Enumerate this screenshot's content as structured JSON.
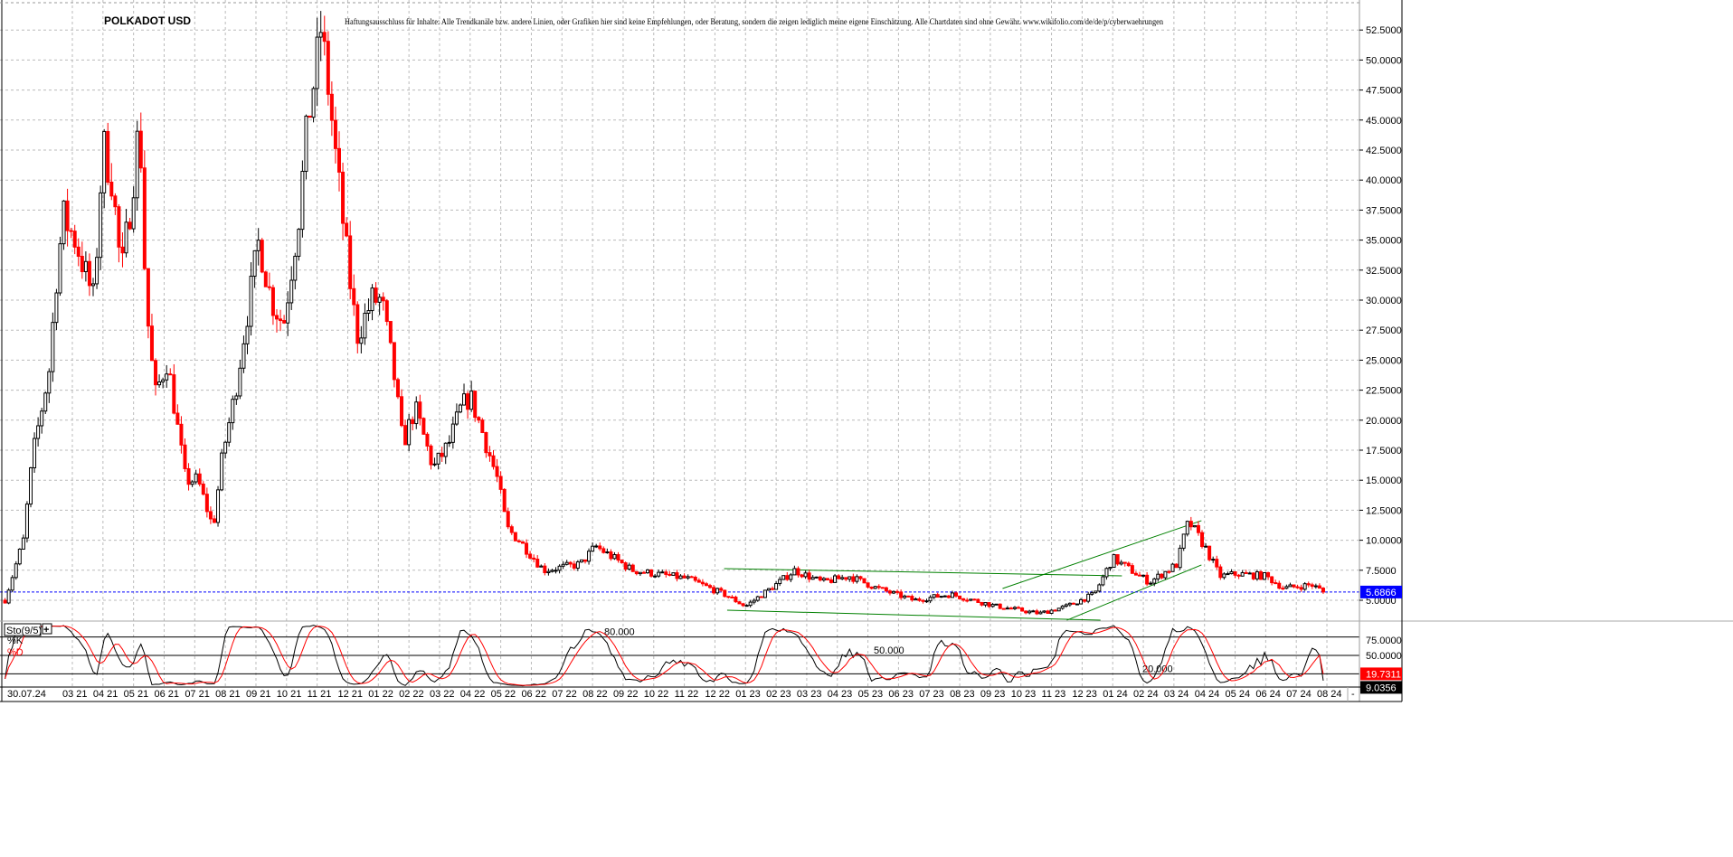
{
  "chart_data": {
    "type": "candlestick",
    "title": "POLKADOT USD",
    "disclaimer": "Haftungsausschluss für Inhalte: Alle Trendkanäle bzw. andere Linien, oder Grafiken hier sind keine Empfehlungen, oder Beratung, sondern die zeigen lediglich meine eigene Einschätzung. Alle Chartdaten sind ohne Gewähr.  www.wikifolio.com/de/de/p/cyberwaehrungen",
    "x_unit": "months since 03/2021",
    "xlim": [
      -2.35,
      42.2
    ],
    "ylim": [
      3.0,
      54.5
    ],
    "y_ticks": [
      5,
      7.5,
      10,
      12.5,
      15,
      17.5,
      20,
      22.5,
      25,
      27.5,
      30,
      32.5,
      35,
      37.5,
      40,
      42.5,
      45,
      47.5,
      50,
      52.5
    ],
    "y_tick_labels": [
      "5.0000",
      "7.5000",
      "10.0000",
      "12.5000",
      "15.0000",
      "17.5000",
      "20.0000",
      "22.5000",
      "25.0000",
      "27.5000",
      "30.0000",
      "32.5000",
      "35.0000",
      "37.5000",
      "40.0000",
      "42.5000",
      "45.0000",
      "47.5000",
      "50.0000",
      "52.5000"
    ],
    "x_first_label": "30.07.24",
    "x_labels": [
      "03 21",
      "04 21",
      "05 21",
      "06 21",
      "07 21",
      "08 21",
      "09 21",
      "10 21",
      "11 21",
      "12 21",
      "01 22",
      "02 22",
      "03 22",
      "04 22",
      "05 22",
      "06 22",
      "07 22",
      "08 22",
      "09 22",
      "10 22",
      "11 22",
      "12 22",
      "01 23",
      "02 23",
      "03 23",
      "04 23",
      "05 23",
      "06 23",
      "07 23",
      "08 23",
      "09 23",
      "10 23",
      "11 23",
      "12 23",
      "01 24",
      "02 24",
      "03 24",
      "04 24",
      "05 24",
      "06 24",
      "07 24",
      "08 24"
    ],
    "price_path": [
      [
        -2.2,
        5
      ],
      [
        -1.6,
        10
      ],
      [
        -1.3,
        17
      ],
      [
        -0.7,
        25
      ],
      [
        -0.6,
        30
      ],
      [
        -0.3,
        37
      ],
      [
        0.1,
        35
      ],
      [
        0.7,
        30
      ],
      [
        1.0,
        43
      ],
      [
        1.3,
        40
      ],
      [
        1.6,
        32
      ],
      [
        1.9,
        38
      ],
      [
        2.2,
        45
      ],
      [
        2.4,
        30
      ],
      [
        2.7,
        22
      ],
      [
        3.1,
        25
      ],
      [
        3.4,
        20
      ],
      [
        3.7,
        15
      ],
      [
        4.1,
        15
      ],
      [
        4.6,
        11
      ],
      [
        4.9,
        17
      ],
      [
        5.3,
        22
      ],
      [
        5.6,
        27
      ],
      [
        6.1,
        35
      ],
      [
        6.5,
        30
      ],
      [
        6.9,
        28
      ],
      [
        7.4,
        37
      ],
      [
        7.7,
        45
      ],
      [
        8.0,
        50
      ],
      [
        8.1,
        53
      ],
      [
        8.4,
        47
      ],
      [
        8.6,
        42
      ],
      [
        9.0,
        33
      ],
      [
        9.3,
        27
      ],
      [
        9.8,
        30
      ],
      [
        10.1,
        30
      ],
      [
        10.5,
        24
      ],
      [
        10.8,
        18
      ],
      [
        11.2,
        21
      ],
      [
        11.8,
        16
      ],
      [
        12.3,
        18
      ],
      [
        12.7,
        21
      ],
      [
        13.0,
        22
      ],
      [
        13.4,
        19
      ],
      [
        13.9,
        15
      ],
      [
        14.2,
        11
      ],
      [
        14.6,
        10
      ],
      [
        15.4,
        7.5
      ],
      [
        16.6,
        8
      ],
      [
        17.1,
        9.5
      ],
      [
        18.3,
        7.5
      ],
      [
        20.1,
        6.8
      ],
      [
        21.3,
        5.5
      ],
      [
        22.0,
        4.5
      ],
      [
        23.1,
        6.5
      ],
      [
        23.6,
        7.5
      ],
      [
        24.5,
        6.5
      ],
      [
        25.4,
        7
      ],
      [
        26.3,
        6
      ],
      [
        27.5,
        5
      ],
      [
        28.7,
        5.5
      ],
      [
        30.2,
        4.5
      ],
      [
        31.6,
        3.9
      ],
      [
        32.5,
        4.5
      ],
      [
        33.4,
        5.5
      ],
      [
        34.0,
        8.5
      ],
      [
        34.6,
        7.5
      ],
      [
        35.2,
        6.5
      ],
      [
        36.1,
        8
      ],
      [
        36.4,
        11
      ],
      [
        36.5,
        11.5
      ],
      [
        37.0,
        9.5
      ],
      [
        37.5,
        7
      ],
      [
        38.1,
        7.2
      ],
      [
        39.0,
        7
      ],
      [
        39.6,
        6
      ],
      [
        40.5,
        6.3
      ],
      [
        40.9,
        5.69
      ]
    ],
    "last_price": 5.6866,
    "last_price_label": "5.6866",
    "trendlines": [
      {
        "from": [
          21.3,
          7.64
        ],
        "to": [
          34.3,
          7.03
        ]
      },
      {
        "from": [
          21.4,
          4.17
        ],
        "to": [
          33.6,
          3.34
        ]
      },
      {
        "from": [
          30.4,
          5.98
        ],
        "to": [
          36.9,
          11.63
        ]
      },
      {
        "from": [
          32.5,
          3.34
        ],
        "to": [
          36.9,
          7.94
        ]
      }
    ],
    "indicator": {
      "name": "Sto(9/5)",
      "add_label": "+",
      "k_label": "%K",
      "d_label": "%D",
      "levels": [
        80,
        50,
        20
      ],
      "level_labels": [
        "80.000",
        "50.000",
        "20.000"
      ],
      "ylim": [
        0,
        100
      ],
      "axis_labels": [
        "75.0000",
        "50.0000"
      ],
      "d_value": "19.7311",
      "k_value": "9.0356"
    },
    "corner_label": "-"
  },
  "colors": {
    "up": "#000000",
    "down": "#ff0000",
    "trend": "#008000",
    "last": "#0000ff",
    "d": "#ff0000",
    "k": "#000000"
  }
}
